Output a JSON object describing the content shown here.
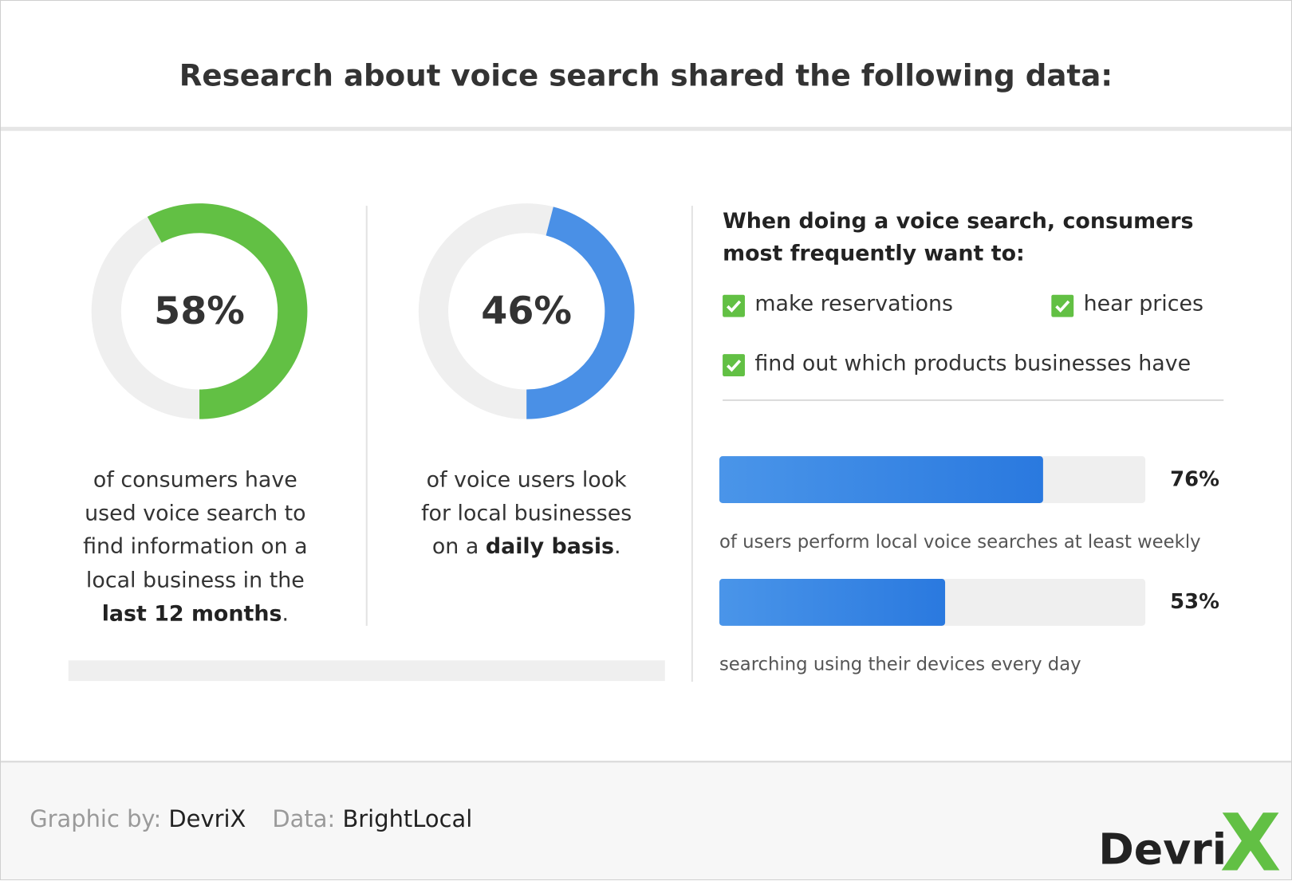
{
  "title": "Research about voice search shared the following data:",
  "stats": [
    {
      "value": 58,
      "value_label": "58%",
      "color": "#62c044",
      "text": "of consumers have used voice search to find information on a local business in the",
      "bold": "last 12 months",
      "end": "."
    },
    {
      "value": 46,
      "value_label": "46%",
      "color": "#4a90e6",
      "text": "of voice users look for local businesses on a",
      "bold": "daily basis",
      "end": "."
    }
  ],
  "wants": {
    "heading": "When doing a voice search, consumers most frequently want to:",
    "items": [
      "make reservations",
      "hear prices",
      "find out which products businesses have"
    ]
  },
  "bars": {
    "xlim": [
      0,
      100
    ],
    "items": [
      {
        "value": 76,
        "value_label": "76%",
        "caption": "of users perform local voice searches at least weekly"
      },
      {
        "value": 53,
        "value_label": "53%",
        "caption": "searching using their devices every day"
      }
    ]
  },
  "footer": {
    "graphic_by_label": "Graphic by:",
    "graphic_by": "DevriX",
    "data_label": "Data:",
    "data": "BrightLocal"
  },
  "logo": {
    "text": "Devri",
    "mark": "X"
  }
}
